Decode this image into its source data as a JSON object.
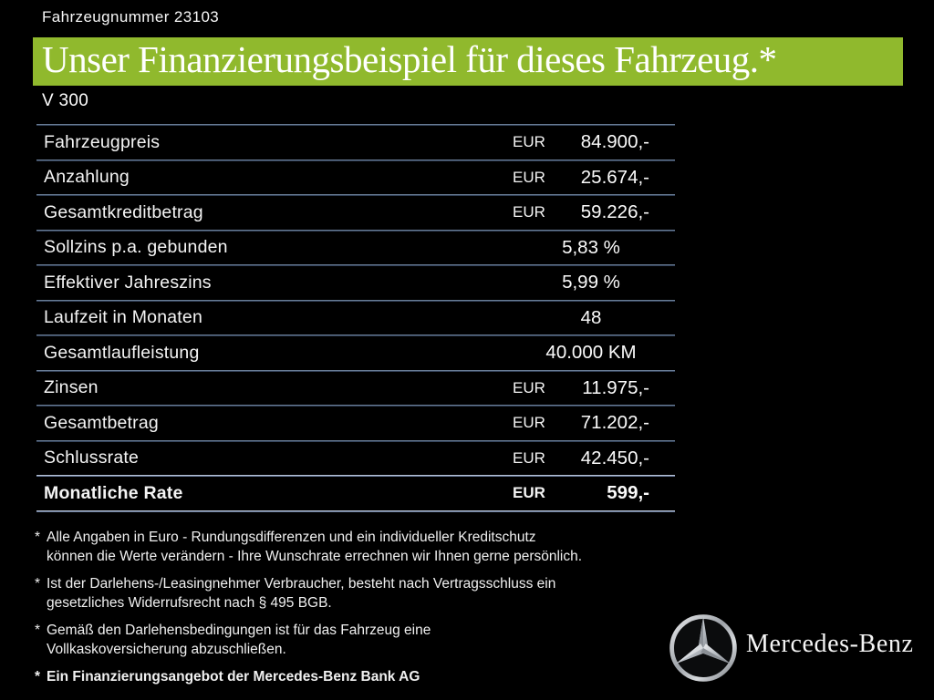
{
  "page": {
    "vehicle_number": "Fahrzeugnummer 23103",
    "title": "Unser Finanzierungsbeispiel für dieses Fahrzeug.*",
    "model": "V 300"
  },
  "colors": {
    "background": "#000000",
    "accent_green": "#90B92D",
    "text": "#FFFFFF",
    "divider_blue": "#8499B3"
  },
  "table": {
    "rows": [
      {
        "label": "Fahrzeugpreis",
        "currency": "EUR",
        "value": "84.900,-",
        "bold": false
      },
      {
        "label": "Anzahlung",
        "currency": "EUR",
        "value": "25.674,-",
        "bold": false
      },
      {
        "label": "Gesamtkreditbetrag",
        "currency": "EUR",
        "value": "59.226,-",
        "bold": false
      },
      {
        "label": "Sollzins p.a. gebunden",
        "currency": "",
        "value": "5,83 %",
        "bold": false
      },
      {
        "label": "Effektiver Jahreszins",
        "currency": "",
        "value": "5,99 %",
        "bold": false
      },
      {
        "label": "Laufzeit in Monaten",
        "currency": "",
        "value": "48",
        "bold": false
      },
      {
        "label": "Gesamtlaufleistung",
        "currency": "",
        "value": "40.000 KM",
        "bold": false
      },
      {
        "label": "Zinsen",
        "currency": "EUR",
        "value": "11.975,-",
        "bold": false
      },
      {
        "label": "Gesamtbetrag",
        "currency": "EUR",
        "value": "71.202,-",
        "bold": false
      },
      {
        "label": "Schlussrate",
        "currency": "EUR",
        "value": "42.450,-",
        "bold": false
      },
      {
        "label": "Monatliche Rate",
        "currency": "EUR",
        "value": "599,-",
        "bold": true
      }
    ]
  },
  "footnotes": [
    {
      "marker": "*",
      "text": "Alle Angaben in Euro - Rundungsdifferenzen und ein individueller Kreditschutz\nkönnen die Werte verändern - Ihre Wunschrate errechnen wir Ihnen gerne persönlich.",
      "bold": false
    },
    {
      "marker": "*",
      "text": "Ist der Darlehens-/Leasingnehmer Verbraucher, besteht nach Vertragsschluss ein\ngesetzliches  Widerrufsrecht nach § 495 BGB.",
      "bold": false
    },
    {
      "marker": "*",
      "text": "Gemäß den Darlehensbedingungen ist für das Fahrzeug eine\nVollkaskoversicherung abzuschließen.",
      "bold": false
    },
    {
      "marker": "*",
      "text": "Ein Finanzierungsangebot der Mercedes-Benz Bank AG",
      "bold": true
    }
  ],
  "brand": {
    "logo_icon": "mercedes-star-icon",
    "wordmark": "Mercedes-Benz"
  }
}
